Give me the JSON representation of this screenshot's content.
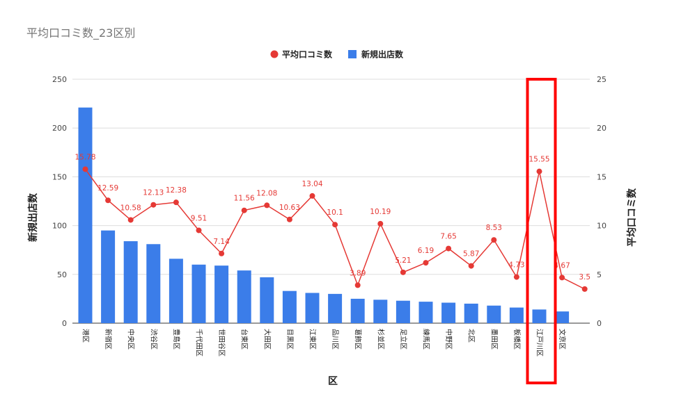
{
  "title": "平均口コミ数_23区別",
  "chart_data": {
    "type": "bar+line",
    "categories": [
      "港区",
      "新宿区",
      "中央区",
      "渋谷区",
      "豊島区",
      "千代田区",
      "世田谷区",
      "台東区",
      "大田区",
      "目黒区",
      "江東区",
      "品川区",
      "葛飾区",
      "杉並区",
      "足立区",
      "練馬区",
      "中野区",
      "北区",
      "墨田区",
      "板橋区",
      "江戸川区",
      "文京区",
      ""
    ],
    "series": [
      {
        "name": "平均口コミ数",
        "type": "line",
        "axis": "right",
        "color": "#e53935",
        "values": [
          15.78,
          12.59,
          10.58,
          12.13,
          12.38,
          9.51,
          7.14,
          11.56,
          12.08,
          10.63,
          13.04,
          10.1,
          3.89,
          10.19,
          5.21,
          6.19,
          7.65,
          5.87,
          8.53,
          4.73,
          15.55,
          4.67,
          3.5
        ],
        "labels": [
          "15.78",
          "12.59",
          "10.58",
          "12.13",
          "12.38",
          "9.51",
          "7.14",
          "11.56",
          "12.08",
          "10.63",
          "13.04",
          "10.1",
          "3.89",
          "10.19",
          "5.21",
          "6.19",
          "7.65",
          "5.87",
          "8.53",
          "4.73",
          "15.55",
          "4.67",
          "3.5"
        ]
      },
      {
        "name": "新規出店数",
        "type": "bar",
        "axis": "left",
        "color": "#3b7de9",
        "values": [
          221,
          95,
          84,
          81,
          66,
          60,
          59,
          54,
          47,
          33,
          31,
          30,
          25,
          24,
          23,
          22,
          21,
          20,
          18,
          16,
          14,
          12,
          null
        ]
      }
    ],
    "xlabel": "区",
    "ylabel_left": "新規出店数",
    "ylabel_right": "平均口コミ数",
    "ylim_left": [
      0,
      250
    ],
    "ylim_right": [
      0,
      25
    ],
    "yticks_left": [
      "0",
      "50",
      "100",
      "150",
      "200",
      "250"
    ],
    "yticks_right": [
      "0",
      "5",
      "10",
      "15",
      "20",
      "25"
    ],
    "grid": true,
    "legend": "top",
    "highlight": {
      "category": "江戸川区",
      "color": "#ff0000"
    }
  }
}
